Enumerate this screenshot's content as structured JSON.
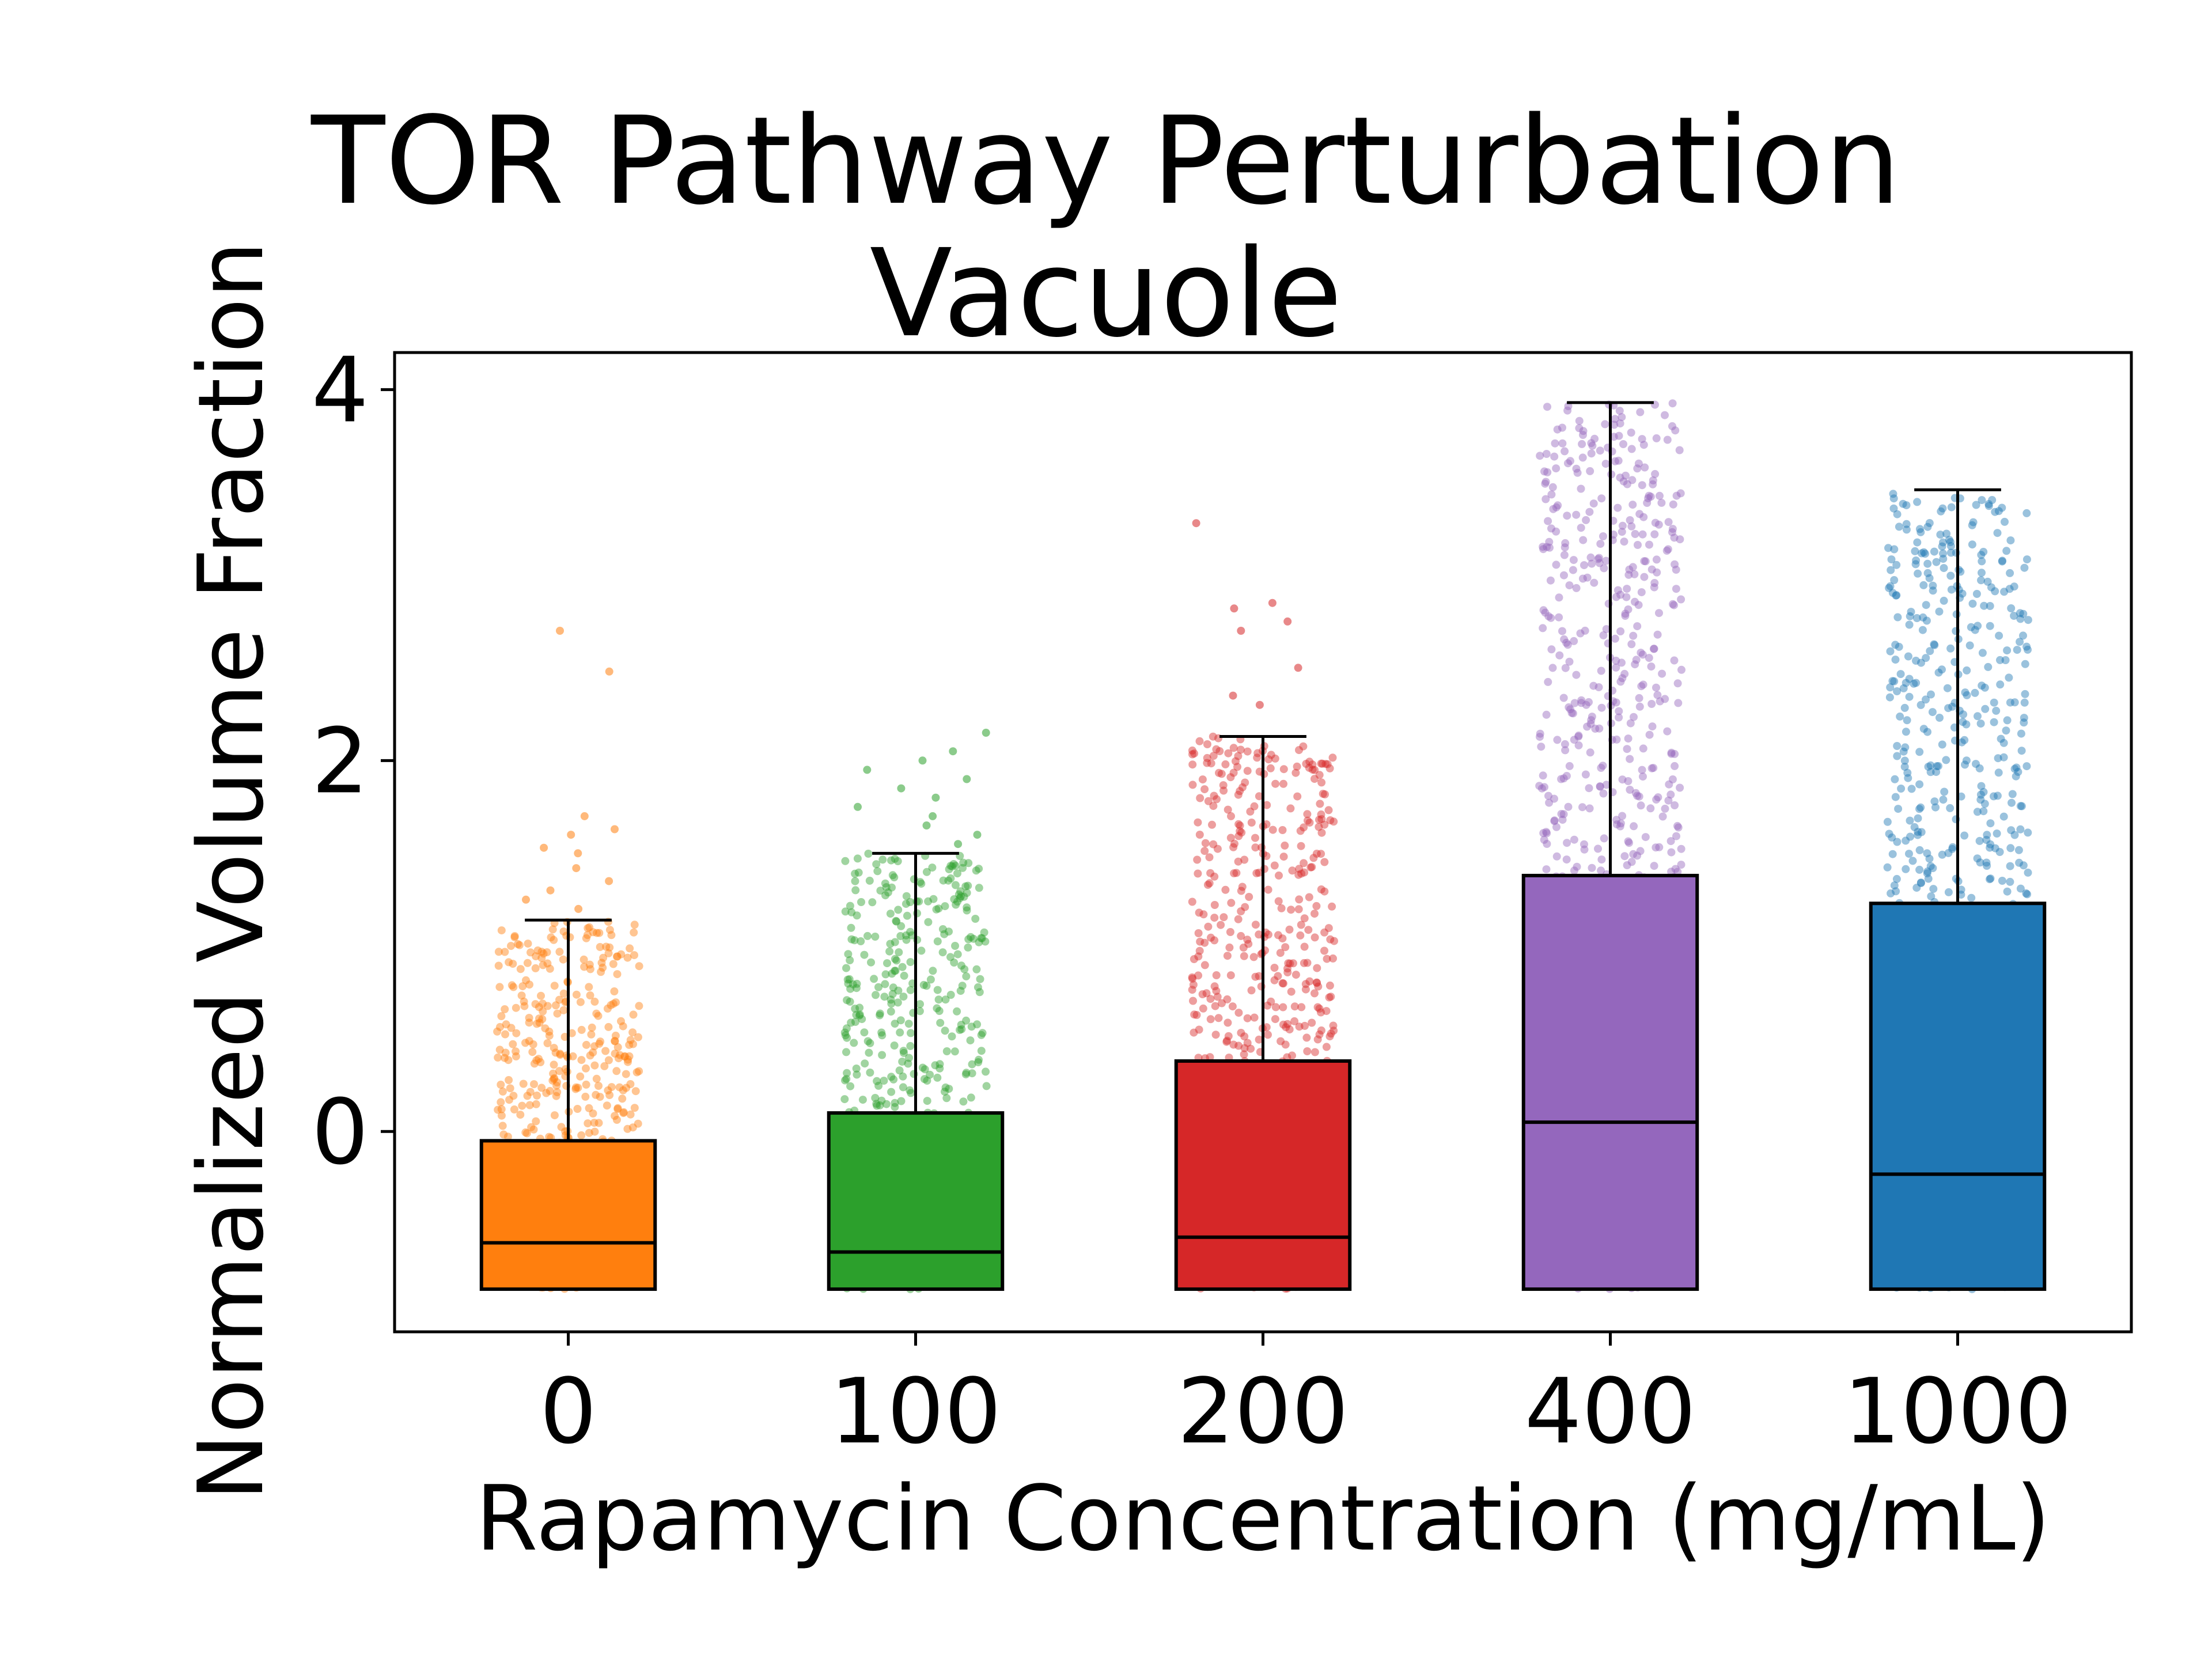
{
  "chart_data": {
    "type": "box",
    "title": [
      "TOR Pathway Perturbation",
      "Vacuole"
    ],
    "xlabel": "Rapamycin Concentration (mg/mL)",
    "ylabel": "Normalized Volume Fraction",
    "categories": [
      "0",
      "100",
      "200",
      "400",
      "1000"
    ],
    "y_ticks": [
      "0",
      "2",
      "4"
    ],
    "ylim": [
      -1.08,
      4.2
    ],
    "grid": false,
    "legend": "none",
    "boxes": [
      {
        "category": "0",
        "color": "#ff7f0e",
        "whisker_low": -0.85,
        "q1": -0.85,
        "median": -0.6,
        "q3": -0.05,
        "whisker_high": 1.14,
        "outliers": [
          1.2,
          1.25,
          1.3,
          1.35,
          1.42,
          1.5,
          1.53,
          1.6,
          1.63,
          1.7,
          2.48,
          2.7
        ]
      },
      {
        "category": "100",
        "color": "#2ca02c",
        "whisker_low": -0.85,
        "q1": -0.85,
        "median": -0.65,
        "q3": 0.1,
        "whisker_high": 1.5,
        "outliers": [
          1.55,
          1.6,
          1.65,
          1.7,
          1.75,
          1.8,
          1.85,
          1.9,
          1.95,
          2.0,
          2.05,
          2.15
        ]
      },
      {
        "category": "200",
        "color": "#d62728",
        "whisker_low": -0.85,
        "q1": -0.85,
        "median": -0.57,
        "q3": 0.38,
        "whisker_high": 2.13,
        "outliers": [
          2.3,
          2.35,
          2.5,
          2.7,
          2.75,
          2.82,
          2.85,
          3.28
        ]
      },
      {
        "category": "400",
        "color": "#9467bd",
        "whisker_low": -0.85,
        "q1": -0.85,
        "median": 0.05,
        "q3": 1.38,
        "whisker_high": 3.93,
        "outliers": []
      },
      {
        "category": "1000",
        "color": "#1f77b4",
        "whisker_low": -0.85,
        "q1": -0.85,
        "median": -0.23,
        "q3": 1.23,
        "whisker_high": 3.46,
        "outliers": []
      }
    ]
  }
}
